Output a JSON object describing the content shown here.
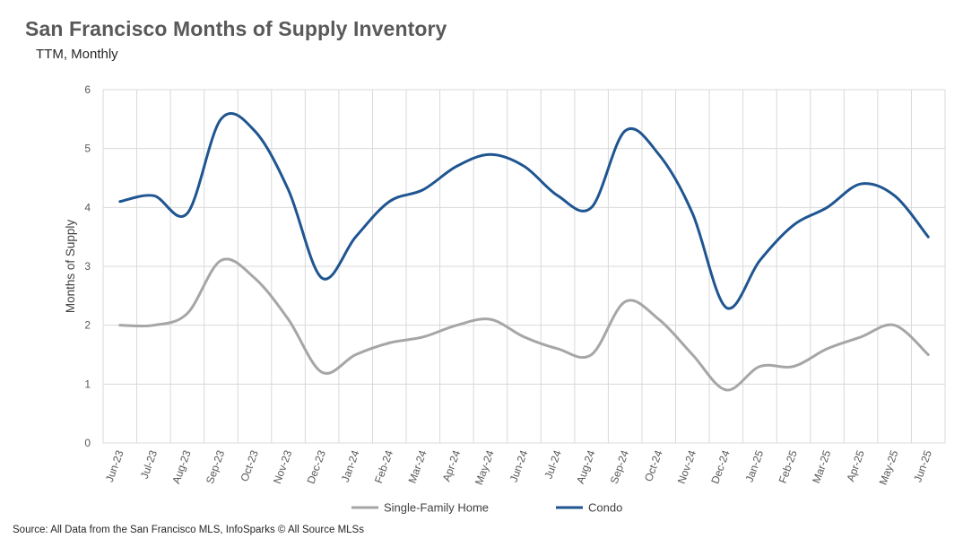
{
  "title": "San Francisco Months of Supply Inventory",
  "subtitle": "TTM, Monthly",
  "source": "Source: All Data from the San Francisco MLS, InfoSparks © All Source MLSs",
  "chart_data": {
    "type": "line",
    "ylabel": "Months of Supply",
    "ylim": [
      0,
      6
    ],
    "yticks": [
      0,
      1,
      2,
      3,
      4,
      5,
      6
    ],
    "grid": true,
    "legend_position": "bottom",
    "categories": [
      "Jun-23",
      "Jul-23",
      "Aug-23",
      "Sep-23",
      "Oct-23",
      "Nov-23",
      "Dec-23",
      "Jan-24",
      "Feb-24",
      "Mar-24",
      "Apr-24",
      "May-24",
      "Jun-24",
      "Jul-24",
      "Aug-24",
      "Sep-24",
      "Oct-24",
      "Nov-24",
      "Dec-24",
      "Jan-25",
      "Feb-25",
      "Mar-25",
      "Apr-25",
      "May-25",
      "Jun-25"
    ],
    "series": [
      {
        "name": "Single-Family Home",
        "color": "#a6a6a6",
        "values": [
          2.0,
          2.0,
          2.2,
          3.1,
          2.8,
          2.1,
          1.2,
          1.5,
          1.7,
          1.8,
          2.0,
          2.1,
          1.8,
          1.6,
          1.5,
          2.4,
          2.1,
          1.5,
          0.9,
          1.3,
          1.3,
          1.6,
          1.8,
          2.0,
          1.5
        ]
      },
      {
        "name": "Condo",
        "color": "#1f5591",
        "values": [
          4.1,
          4.2,
          3.9,
          5.5,
          5.3,
          4.3,
          2.8,
          3.5,
          4.1,
          4.3,
          4.7,
          4.9,
          4.7,
          4.2,
          4.0,
          5.3,
          4.9,
          3.9,
          2.3,
          3.1,
          3.7,
          4.0,
          4.4,
          4.2,
          3.5
        ]
      }
    ]
  }
}
